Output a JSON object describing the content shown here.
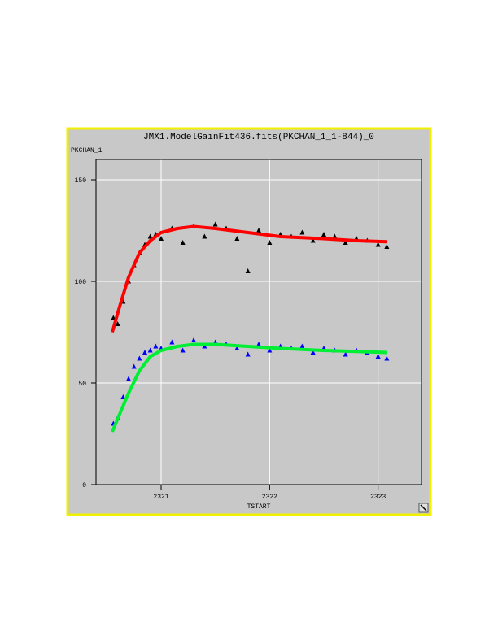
{
  "chart_data": {
    "type": "scatter",
    "title": "JMX1.ModelGainFit436.fits(PKCHAN_1_1-844)_0",
    "y_label": "PKCHAN_1",
    "x_label": "TSTART",
    "xlim": [
      2320.4,
      2323.4
    ],
    "ylim": [
      0,
      160
    ],
    "xticks": [
      2321,
      2322,
      2323
    ],
    "yticks": [
      0,
      50,
      100,
      150
    ],
    "grid": true,
    "series": [
      {
        "color": "#000000",
        "mode": "markers",
        "x": [
          2320.56,
          2320.6,
          2320.65,
          2320.7,
          2320.75,
          2320.8,
          2320.85,
          2320.9,
          2320.95,
          2321.0,
          2321.1,
          2321.2,
          2321.3,
          2321.4,
          2321.5,
          2321.6,
          2321.7,
          2321.8,
          2321.9,
          2322.0,
          2322.1,
          2322.2,
          2322.3,
          2322.4,
          2322.5,
          2322.6,
          2322.7,
          2322.8,
          2322.9,
          2323.0,
          2323.08
        ],
        "values": [
          82,
          79,
          90,
          100,
          108,
          114,
          118,
          122,
          123,
          121,
          126,
          119,
          127,
          122,
          128,
          126,
          121,
          105,
          125,
          119,
          123,
          122,
          124,
          120,
          123,
          122,
          119,
          121,
          120,
          118,
          117
        ]
      },
      {
        "color": "#0000ff",
        "mode": "markers",
        "x": [
          2320.56,
          2320.6,
          2320.65,
          2320.7,
          2320.75,
          2320.8,
          2320.85,
          2320.9,
          2320.95,
          2321.0,
          2321.1,
          2321.2,
          2321.3,
          2321.4,
          2321.5,
          2321.6,
          2321.7,
          2321.8,
          2321.9,
          2322.0,
          2322.1,
          2322.2,
          2322.3,
          2322.4,
          2322.5,
          2322.6,
          2322.7,
          2322.8,
          2322.9,
          2323.0,
          2323.08
        ],
        "values": [
          30,
          33,
          43,
          52,
          58,
          62,
          65,
          66,
          68,
          67,
          70,
          66,
          71,
          68,
          70,
          69,
          67,
          64,
          69,
          66,
          68,
          67,
          68,
          65,
          67,
          66,
          64,
          66,
          65,
          63,
          62
        ]
      },
      {
        "color": "#ff0000",
        "mode": "line",
        "x": [
          2320.55,
          2320.62,
          2320.7,
          2320.8,
          2320.9,
          2321.0,
          2321.15,
          2321.3,
          2321.5,
          2321.8,
          2322.1,
          2322.5,
          2322.8,
          2323.08
        ],
        "values": [
          75,
          88,
          102,
          114,
          120,
          124,
          126,
          127,
          126,
          124,
          122,
          121,
          120,
          119.5
        ]
      },
      {
        "color": "#00ee33",
        "mode": "line",
        "x": [
          2320.55,
          2320.62,
          2320.7,
          2320.8,
          2320.9,
          2321.0,
          2321.15,
          2321.3,
          2321.5,
          2321.8,
          2322.1,
          2322.5,
          2322.8,
          2323.08
        ],
        "values": [
          26,
          35,
          45,
          56,
          63,
          66,
          68,
          69,
          69,
          68,
          67,
          66,
          65.5,
          65
        ]
      }
    ]
  }
}
